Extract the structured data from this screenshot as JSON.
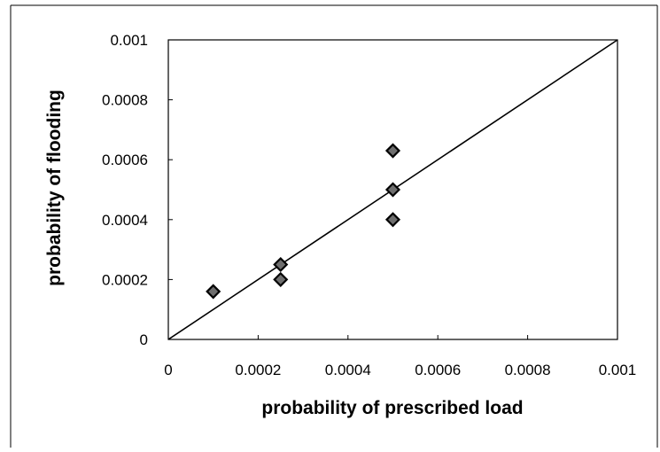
{
  "chart_data": {
    "type": "scatter",
    "title": "",
    "xlabel": "probability of prescribed load",
    "ylabel": "probability of flooding",
    "xlim": [
      0,
      0.001
    ],
    "ylim": [
      0,
      0.001
    ],
    "x_ticks": [
      "0",
      "0.0002",
      "0.0004",
      "0.0006",
      "0.0008",
      "0.001"
    ],
    "y_ticks": [
      "0",
      "0.0002",
      "0.0004",
      "0.0006",
      "0.0008",
      "0.001"
    ],
    "grid": false,
    "legend": "none",
    "marker": "diamond",
    "series": [
      {
        "points": [
          {
            "x": 0.0001,
            "y": 0.00016
          },
          {
            "x": 0.00025,
            "y": 0.00025
          },
          {
            "x": 0.00025,
            "y": 0.0002
          },
          {
            "x": 0.0005,
            "y": 0.00063
          },
          {
            "x": 0.0005,
            "y": 0.0005
          },
          {
            "x": 0.0005,
            "y": 0.0004
          }
        ]
      }
    ],
    "reference_line": {
      "type": "y=x",
      "from": [
        0,
        0
      ],
      "to": [
        0.001,
        0.001
      ]
    },
    "colors": {
      "marker_fill": "#6e6e6e",
      "marker_stroke": "#000000",
      "line": "#000000",
      "background": "#ffffff"
    }
  }
}
